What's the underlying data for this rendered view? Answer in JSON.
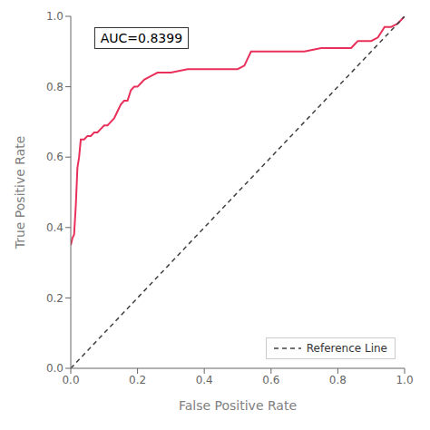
{
  "chart_data": {
    "type": "line",
    "xlabel": "False Positive Rate",
    "ylabel": "True Positive Rate",
    "annotation": "AUC=0.8399",
    "series": [
      {
        "x": [
          0.0,
          0.005,
          0.01,
          0.015,
          0.02,
          0.025,
          0.03,
          0.04,
          0.05,
          0.06,
          0.07,
          0.08,
          0.09,
          0.1,
          0.11,
          0.12,
          0.13,
          0.14,
          0.15,
          0.16,
          0.17,
          0.18,
          0.19,
          0.2,
          0.21,
          0.22,
          0.24,
          0.26,
          0.28,
          0.3,
          0.35,
          0.4,
          0.45,
          0.48,
          0.5,
          0.52,
          0.54,
          0.55,
          0.56,
          0.58,
          0.6,
          0.65,
          0.7,
          0.75,
          0.8,
          0.84,
          0.85,
          0.86,
          0.88,
          0.9,
          0.92,
          0.94,
          0.96,
          0.98,
          1.0
        ],
        "values": [
          0.35,
          0.37,
          0.38,
          0.46,
          0.57,
          0.6,
          0.65,
          0.65,
          0.66,
          0.66,
          0.67,
          0.67,
          0.68,
          0.69,
          0.69,
          0.7,
          0.71,
          0.73,
          0.75,
          0.76,
          0.76,
          0.79,
          0.8,
          0.8,
          0.81,
          0.82,
          0.83,
          0.84,
          0.84,
          0.84,
          0.85,
          0.85,
          0.85,
          0.85,
          0.85,
          0.86,
          0.9,
          0.9,
          0.9,
          0.9,
          0.9,
          0.9,
          0.9,
          0.91,
          0.91,
          0.91,
          0.92,
          0.93,
          0.93,
          0.93,
          0.94,
          0.97,
          0.97,
          0.98,
          1.0
        ],
        "color": "#E8305A",
        "line_style": "solid"
      },
      {
        "name": "Reference Line",
        "x": [
          0.0,
          1.0
        ],
        "values": [
          0.0,
          1.0
        ],
        "color": "#404040",
        "line_style": "dashed"
      }
    ],
    "xlim": [
      0.0,
      1.0
    ],
    "ylim": [
      0.0,
      1.0
    ],
    "xticks": [
      {
        "value": 0.0,
        "label": "0.0"
      },
      {
        "value": 0.2,
        "label": "0.2"
      },
      {
        "value": 0.4,
        "label": "0.4"
      },
      {
        "value": 0.6,
        "label": "0.6"
      },
      {
        "value": 0.8,
        "label": "0.8"
      },
      {
        "value": 1.0,
        "label": "1.0"
      }
    ],
    "yticks": [
      {
        "value": 0.0,
        "label": "0.0"
      },
      {
        "value": 0.2,
        "label": "0.2"
      },
      {
        "value": 0.4,
        "label": "0.4"
      },
      {
        "value": 0.6,
        "label": "0.6"
      },
      {
        "value": 0.8,
        "label": "0.8"
      },
      {
        "value": 1.0,
        "label": "1.0"
      }
    ],
    "grid": false,
    "legend": "lower right"
  }
}
